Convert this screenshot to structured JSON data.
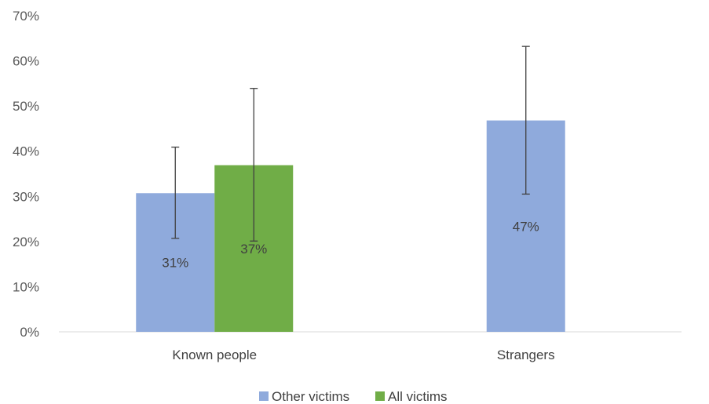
{
  "chart_data": {
    "type": "bar",
    "categories": [
      "Known people",
      "Strangers"
    ],
    "series": [
      {
        "name": "Other victims",
        "color": "#8FAADC",
        "values": [
          30.7,
          46.8
        ],
        "error_low": [
          20.7,
          30.5
        ],
        "error_high": [
          40.9,
          63.2
        ],
        "labels": [
          "31%",
          "47%"
        ]
      },
      {
        "name": "All victims",
        "color": "#70AD47",
        "values": [
          36.9,
          null
        ],
        "error_low": [
          20.1,
          null
        ],
        "error_high": [
          53.9,
          null
        ],
        "labels": [
          "37%",
          ""
        ]
      }
    ],
    "ylim": [
      0,
      70
    ],
    "yticks": [
      "0%",
      "10%",
      "20%",
      "30%",
      "40%",
      "50%",
      "60%",
      "70%"
    ],
    "grid": false,
    "legend_position": "bottom",
    "title": "",
    "xlabel": "",
    "ylabel": ""
  }
}
